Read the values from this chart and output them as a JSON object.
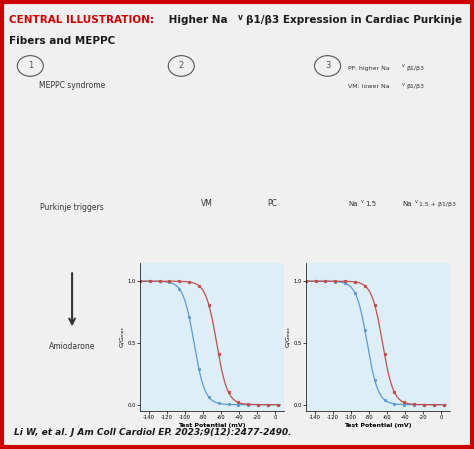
{
  "header_bg": "#d6e4f0",
  "border_color": "#cc0000",
  "xlabel": "Test Potential (mV)",
  "ylabel": "G/Gₘₐₓ",
  "xlim": [
    -150,
    10
  ],
  "ylim": [
    -0.05,
    1.15
  ],
  "xticks": [
    -140,
    -120,
    -100,
    -80,
    -60,
    -40,
    -20,
    0
  ],
  "yticks": [
    0.0,
    0.5,
    1.0
  ],
  "chart_bg": "#ddeef7",
  "vm_color": "#5b9bd5",
  "pc_color": "#c0504d",
  "nav15_color": "#5b9bd5",
  "nav15_b1b3_color": "#c0504d",
  "citation": "Li W, et al. J Am Coll Cardiol EP. 2023;9(12):2477-2490.",
  "vm_half": -90,
  "pc_half": -65,
  "nav15_half": -82,
  "nav15_b1b3_half": -65,
  "slope": 6
}
